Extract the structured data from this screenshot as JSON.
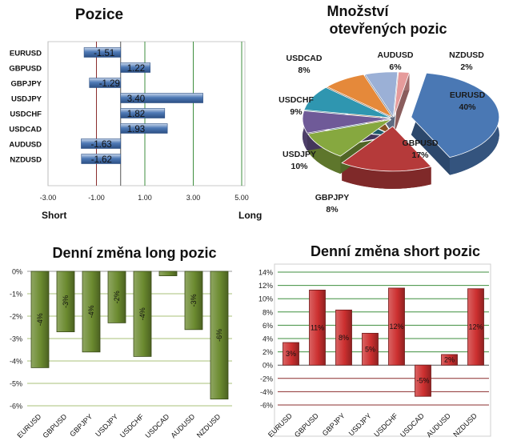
{
  "chart_data": [
    {
      "type": "bar",
      "orientation": "horizontal",
      "title": "Pozice",
      "categories": [
        "EURUSD",
        "GBPUSD",
        "GBPJPY",
        "USDJPY",
        "USDCHF",
        "USDCAD",
        "AUDUSD",
        "NZDUSD"
      ],
      "values": [
        -1.51,
        1.22,
        -1.29,
        3.4,
        1.82,
        1.93,
        -1.63,
        -1.62
      ],
      "value_labels": [
        "-1.51",
        "1.22",
        "-1.29",
        "3.40",
        "1.82",
        "1.93",
        "-1.63",
        "-1.62"
      ],
      "xlim": [
        -3.0,
        5.0
      ],
      "xticks": [
        -3.0,
        -1.0,
        1.0,
        3.0,
        5.0
      ],
      "xtick_labels": [
        "-3.00",
        "-1.00",
        "1.00",
        "3.00",
        "5.00"
      ],
      "annotations": {
        "short": "Short",
        "long": "Long"
      },
      "bar_color": "#4f7ab6"
    },
    {
      "type": "pie",
      "title_lines": [
        "Množství",
        "otevřených pozic"
      ],
      "slices": [
        {
          "label": "EURUSD",
          "value": 40,
          "pct": "40%",
          "color": "#4a78b4"
        },
        {
          "label": "GBPUSD",
          "value": 17,
          "pct": "17%",
          "color": "#b53a3a"
        },
        {
          "label": "USDJPY",
          "value": 10,
          "pct": "10%",
          "color": "#86a83f"
        },
        {
          "label": "GBPJPY",
          "value": 8,
          "pct": "8%",
          "color": "#6f5a98"
        },
        {
          "label": "USDCHF",
          "value": 9,
          "pct": "9%",
          "color": "#2f96b0"
        },
        {
          "label": "USDCAD",
          "value": 8,
          "pct": "8%",
          "color": "#e5893a"
        },
        {
          "label": "AUDUSD",
          "value": 6,
          "pct": "6%",
          "color": "#9bb0d6"
        },
        {
          "label": "NZDUSD",
          "value": 2,
          "pct": "2%",
          "color": "#e69b9b"
        }
      ]
    },
    {
      "type": "bar",
      "title": "Denní změna long pozic",
      "categories": [
        "EURUSD",
        "GBPUSD",
        "GBPJPY",
        "USDJPY",
        "USDCHF",
        "USDCAD",
        "AUDUSD",
        "NZDUSD"
      ],
      "values": [
        -4.3,
        -2.7,
        -3.6,
        -2.3,
        -3.8,
        -0.2,
        -2.6,
        -5.7
      ],
      "value_labels": [
        "-4%",
        "-3%",
        "-4%",
        "-2%",
        "-4%",
        "",
        "-3%",
        "-6%"
      ],
      "ylim": [
        -6,
        0
      ],
      "yticks": [
        0,
        -1,
        -2,
        -3,
        -4,
        -5,
        -6
      ],
      "ytick_labels": [
        "0%",
        "-1%",
        "-2%",
        "-3%",
        "-4%",
        "-5%",
        "-6%"
      ],
      "bar_color": "#6b8a2f"
    },
    {
      "type": "bar",
      "title": "Denní změna short pozic",
      "categories": [
        "EURUSD",
        "GBPUSD",
        "GBPJPY",
        "USDJPY",
        "USDCHF",
        "USDCAD",
        "AUDUSD",
        "NZDUSD"
      ],
      "values": [
        3.4,
        11.3,
        8.3,
        4.8,
        11.6,
        -4.7,
        1.6,
        11.5
      ],
      "value_labels": [
        "3%",
        "11%",
        "8%",
        "5%",
        "12%",
        "-5%",
        "2%",
        "12%"
      ],
      "ylim": [
        -6,
        14
      ],
      "yticks": [
        14,
        12,
        10,
        8,
        6,
        4,
        2,
        0,
        -2,
        -4,
        -6
      ],
      "ytick_labels": [
        "14%",
        "12%",
        "10%",
        "8%",
        "6%",
        "4%",
        "2%",
        "0%",
        "-2%",
        "-4%",
        "-6%"
      ],
      "bar_color": "#cc2f2f"
    }
  ]
}
